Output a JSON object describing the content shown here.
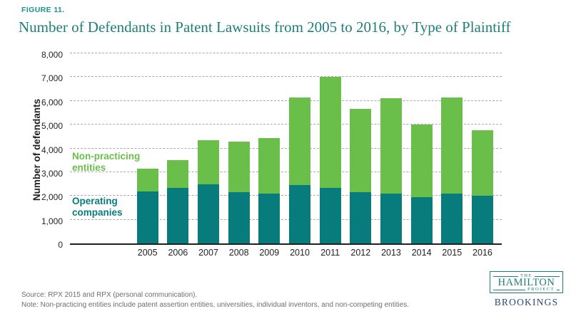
{
  "figure_label": "FIGURE 11.",
  "title": "Number of Defendants in Patent Lawsuits from 2005 to 2016, by Type of Plaintiff",
  "colors": {
    "green": "#6abf4b",
    "teal": "#087c7c",
    "title_teal": "#1e7f7a",
    "figure_teal": "#1b9488",
    "axis_text": "#231f20",
    "gridline": "#a8aaad",
    "footer_gray": "#6d6e71",
    "logo_teal": "#1e7f7a",
    "brookings_navy": "#2a4a76"
  },
  "chart_data": {
    "type": "bar",
    "stacked": true,
    "title": "Number of Defendants in Patent Lawsuits from 2005 to 2016, by Type of Plaintiff",
    "xlabel": "",
    "ylabel": "Number of defendants",
    "ylim": [
      0,
      8000
    ],
    "ytick_interval": 1000,
    "ytick_labels": [
      "0",
      "1,000",
      "2,000",
      "3,000",
      "4,000",
      "5,000",
      "6,000",
      "7,000",
      "8,000"
    ],
    "grid": "horizontal-dashed",
    "legend_position": "inside-left",
    "categories": [
      "2005",
      "2006",
      "2007",
      "2008",
      "2009",
      "2010",
      "2011",
      "2012",
      "2013",
      "2014",
      "2015",
      "2016"
    ],
    "series": [
      {
        "name": "Operating companies",
        "color": "#087c7c",
        "values": [
          2200,
          2350,
          2500,
          2150,
          2100,
          2450,
          2350,
          2150,
          2100,
          1950,
          2100,
          2000
        ]
      },
      {
        "name": "Non-practicing entities",
        "color": "#6abf4b",
        "values": [
          950,
          1150,
          1850,
          2150,
          2350,
          3700,
          4650,
          3500,
          4000,
          3050,
          4050,
          2750
        ]
      }
    ],
    "totals": [
      3150,
      3500,
      4350,
      4300,
      4450,
      6150,
      7000,
      5650,
      6100,
      5000,
      6150,
      4750
    ]
  },
  "legend": {
    "npe_line1": "Non-practicing",
    "npe_line2": "entities",
    "oc_line1": "Operating",
    "oc_line2": "companies"
  },
  "footer": {
    "source": "Source: RPX 2015 and RPX (personal communication).",
    "note": "Note:  Non-practicing entities include patent assertion entities, universities, individual inventors, and non-competing entities."
  },
  "logo": {
    "the": "THE",
    "hamilton": "HAMILTON",
    "project": "PROJECT",
    "brookings": "BROOKINGS"
  }
}
